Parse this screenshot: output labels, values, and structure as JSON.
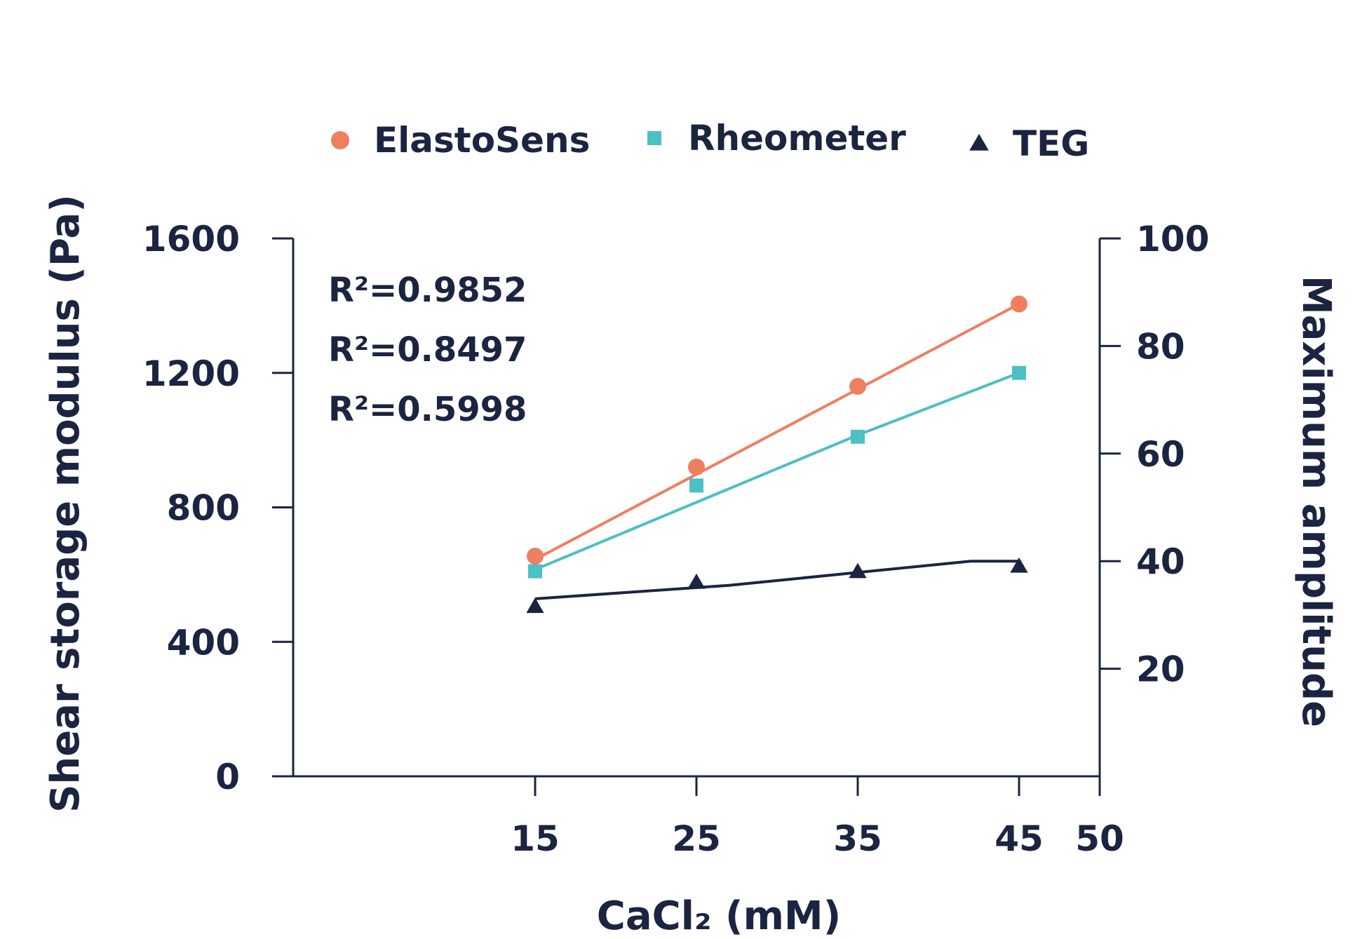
{
  "chart_data": {
    "type": "scatter",
    "xlabel": "CaCl₂ (mM)",
    "ylabel": "Shear storage modulus  (Pa)",
    "y2label": "Maximum amplitude",
    "x_ticks": [
      15,
      25,
      35,
      45,
      50
    ],
    "y_ticks": [
      0,
      400,
      800,
      1200,
      1600
    ],
    "y2_ticks": [
      20,
      40,
      60,
      80,
      100
    ],
    "ylim": [
      0,
      1600
    ],
    "y2lim": [
      0,
      100
    ],
    "series": [
      {
        "name": "ElastoSens",
        "axis": "left",
        "marker": "circle",
        "color": "#ee7f5f",
        "x": [
          15,
          25,
          35,
          45
        ],
        "y": [
          655,
          920,
          1160,
          1405
        ],
        "trend": [
          [
            15,
            645
          ],
          [
            45,
            1405
          ]
        ]
      },
      {
        "name": "Rheometer",
        "axis": "left",
        "marker": "square",
        "color": "#4cc0c4",
        "x": [
          15,
          25,
          35,
          45
        ],
        "y": [
          610,
          865,
          1010,
          1200
        ],
        "trend": [
          [
            15,
            615
          ],
          [
            35,
            1015
          ],
          [
            45,
            1200
          ]
        ]
      },
      {
        "name": "TEG",
        "axis": "right",
        "marker": "triangle",
        "color": "#1b2440",
        "x": [
          15,
          25,
          35,
          45
        ],
        "y": [
          31.5,
          36,
          38,
          39
        ],
        "trend": [
          [
            15,
            33
          ],
          [
            27,
            35.5
          ],
          [
            42,
            40
          ],
          [
            45,
            40
          ]
        ]
      }
    ],
    "annotations": [
      "R²=0.9852",
      "R²=0.8497",
      "R²=0.5998"
    ],
    "legend_position": "top",
    "grid": false
  }
}
